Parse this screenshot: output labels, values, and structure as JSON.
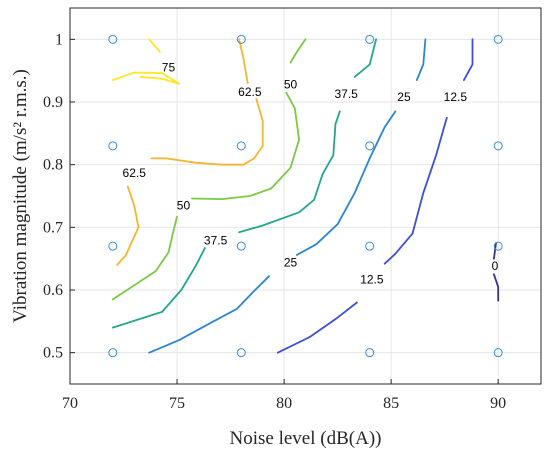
{
  "chart_data": {
    "type": "contour",
    "xlabel": "Noise level (dB(A))",
    "ylabel": "Vibration magnitude (m/s² r.m.s.)",
    "xlim": [
      70,
      92
    ],
    "ylim": [
      0.45,
      1.05
    ],
    "xticks": [
      70,
      75,
      80,
      85,
      90
    ],
    "yticks": [
      0.5,
      0.6,
      0.7,
      0.8,
      0.9,
      1
    ],
    "xtick_labels": [
      "70",
      "75",
      "80",
      "85",
      "90"
    ],
    "ytick_labels": [
      "0.5",
      "0.6",
      "0.7",
      "0.8",
      "0.9",
      "1"
    ],
    "grid": true,
    "sample_points": {
      "x": [
        72,
        78,
        84,
        90
      ],
      "y": [
        0.5,
        0.67,
        0.83,
        1.0
      ],
      "color": "#3a8fd0"
    },
    "contours": [
      {
        "level": "75",
        "color": "#fde725",
        "segments": [
          [
            [
              73.7,
              1.0
            ],
            [
              74.2,
              0.98
            ]
          ],
          [
            [
              72.0,
              0.935
            ],
            [
              73.0,
              0.947
            ],
            [
              74.3,
              0.946
            ],
            [
              75.1,
              0.929
            ],
            [
              74.3,
              0.937
            ],
            [
              73.3,
              0.94
            ]
          ]
        ],
        "label": {
          "text": "75",
          "x": 74.6,
          "y": 0.955
        }
      },
      {
        "level": "62.5",
        "color": "#f4b62e",
        "segments": [
          [
            [
              77.9,
              1.0
            ],
            [
              78.1,
              0.97
            ],
            [
              78.3,
              0.93
            ]
          ],
          [
            [
              78.7,
              0.905
            ],
            [
              79.0,
              0.87
            ],
            [
              79.0,
              0.83
            ],
            [
              78.6,
              0.81
            ],
            [
              78.1,
              0.8
            ],
            [
              77.1,
              0.8
            ],
            [
              75.9,
              0.803
            ],
            [
              74.5,
              0.81
            ],
            [
              73.8,
              0.81
            ]
          ],
          [
            [
              72.7,
              0.765
            ],
            [
              73.0,
              0.735
            ],
            [
              73.2,
              0.7
            ],
            [
              72.6,
              0.655
            ],
            [
              72.2,
              0.64
            ]
          ]
        ],
        "labels": [
          {
            "text": "62.5",
            "x": 78.4,
            "y": 0.916
          },
          {
            "text": "62.5",
            "x": 73.0,
            "y": 0.787
          }
        ]
      },
      {
        "level": "50",
        "color": "#7ac944",
        "segments": [
          [
            [
              81.0,
              1.0
            ],
            [
              80.6,
              0.98
            ],
            [
              80.3,
              0.963
            ]
          ],
          [
            [
              80.1,
              0.915
            ],
            [
              80.5,
              0.89
            ],
            [
              80.7,
              0.84
            ],
            [
              80.3,
              0.795
            ],
            [
              79.4,
              0.762
            ],
            [
              78.4,
              0.75
            ],
            [
              77.1,
              0.745
            ],
            [
              75.7,
              0.746
            ]
          ],
          [
            [
              75.0,
              0.717
            ],
            [
              74.8,
              0.69
            ],
            [
              74.6,
              0.66
            ],
            [
              74.0,
              0.63
            ],
            [
              72.0,
              0.585
            ]
          ]
        ],
        "labels": [
          {
            "text": "50",
            "x": 80.3,
            "y": 0.928
          },
          {
            "text": "50",
            "x": 75.3,
            "y": 0.735
          }
        ]
      },
      {
        "level": "37.5",
        "color": "#22a68e",
        "segments": [
          [
            [
              84.3,
              1.0
            ],
            [
              84.0,
              0.96
            ],
            [
              83.3,
              0.94
            ]
          ],
          [
            [
              82.6,
              0.885
            ],
            [
              82.4,
              0.865
            ],
            [
              82.3,
              0.815
            ],
            [
              81.8,
              0.785
            ],
            [
              81.4,
              0.744
            ],
            [
              80.7,
              0.724
            ],
            [
              79.0,
              0.703
            ],
            [
              77.9,
              0.692
            ]
          ],
          [
            [
              76.3,
              0.667
            ],
            [
              75.9,
              0.64
            ],
            [
              75.2,
              0.6
            ],
            [
              74.3,
              0.565
            ],
            [
              72.0,
              0.54
            ]
          ]
        ],
        "labels": [
          {
            "text": "37.5",
            "x": 82.9,
            "y": 0.913
          },
          {
            "text": "37.5",
            "x": 76.8,
            "y": 0.679
          }
        ]
      },
      {
        "level": "25",
        "color": "#2b85d6",
        "segments": [
          [
            [
              86.6,
              1.0
            ],
            [
              86.5,
              0.96
            ],
            [
              86.2,
              0.935
            ]
          ],
          [
            [
              85.2,
              0.885
            ],
            [
              84.7,
              0.86
            ],
            [
              84.0,
              0.81
            ],
            [
              83.3,
              0.755
            ],
            [
              82.5,
              0.705
            ],
            [
              81.5,
              0.673
            ],
            [
              80.6,
              0.656
            ]
          ],
          [
            [
              79.3,
              0.622
            ],
            [
              78.5,
              0.595
            ],
            [
              77.8,
              0.57
            ],
            [
              76.6,
              0.548
            ],
            [
              75.1,
              0.52
            ],
            [
              73.7,
              0.5
            ]
          ]
        ],
        "labels": [
          {
            "text": "25",
            "x": 85.6,
            "y": 0.908
          },
          {
            "text": "25",
            "x": 80.3,
            "y": 0.644
          }
        ]
      },
      {
        "level": "12.5",
        "color": "#3d4edb",
        "segments": [
          [
            [
              88.8,
              1.0
            ],
            [
              88.8,
              0.96
            ],
            [
              88.4,
              0.935
            ]
          ],
          [
            [
              87.6,
              0.875
            ],
            [
              87.1,
              0.815
            ],
            [
              86.5,
              0.755
            ],
            [
              86.0,
              0.69
            ],
            [
              85.2,
              0.658
            ],
            [
              84.7,
              0.642
            ]
          ],
          [
            [
              83.4,
              0.58
            ],
            [
              82.5,
              0.556
            ],
            [
              81.2,
              0.525
            ],
            [
              79.7,
              0.5
            ]
          ]
        ],
        "labels": [
          {
            "text": "12.5",
            "x": 88.0,
            "y": 0.908
          },
          {
            "text": "12.5",
            "x": 84.1,
            "y": 0.617
          }
        ]
      },
      {
        "level": "0",
        "color": "#3b2f8c",
        "segments": [
          [
            [
              89.9,
              0.675
            ],
            [
              89.8,
              0.65
            ]
          ],
          [
            [
              89.8,
              0.625
            ],
            [
              90.0,
              0.605
            ],
            [
              90.0,
              0.583
            ]
          ]
        ],
        "label": {
          "text": "0",
          "x": 89.85,
          "y": 0.638
        }
      }
    ]
  }
}
